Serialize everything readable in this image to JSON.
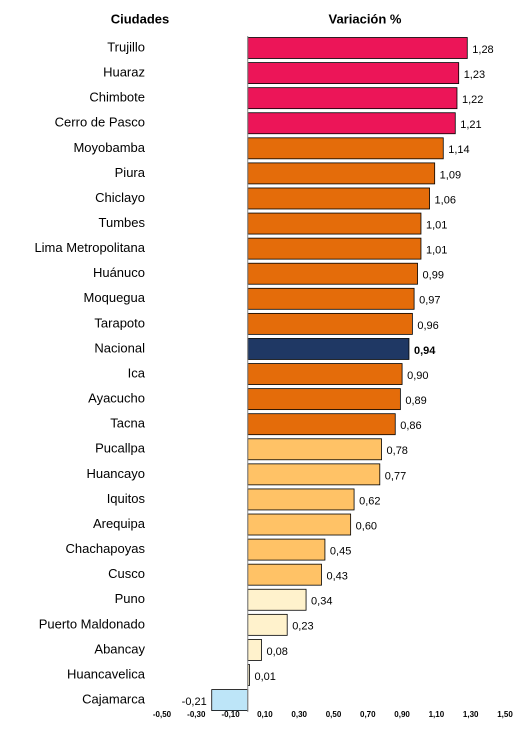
{
  "chart_data": {
    "type": "barh",
    "category_header": "Ciudades",
    "value_header": "Variación %",
    "categories": [
      "Trujillo",
      "Huaraz",
      "Chimbote",
      "Cerro de Pasco",
      "Moyobamba",
      "Piura",
      "Chiclayo",
      "Tumbes",
      "Lima Metropolitana",
      "Huánuco",
      "Moquegua",
      "Tarapoto",
      "Nacional",
      "Ica",
      "Ayacucho",
      "Tacna",
      "Pucallpa",
      "Huancayo",
      "Iquitos",
      "Arequipa",
      "Chachapoyas",
      "Cusco",
      "Puno",
      "Puerto Maldonado",
      "Abancay",
      "Huancavelica",
      "Cajamarca"
    ],
    "values": [
      1.28,
      1.23,
      1.22,
      1.21,
      1.14,
      1.09,
      1.06,
      1.01,
      1.01,
      0.99,
      0.97,
      0.96,
      0.94,
      0.9,
      0.89,
      0.86,
      0.78,
      0.77,
      0.62,
      0.6,
      0.45,
      0.43,
      0.34,
      0.23,
      0.08,
      0.01,
      -0.21
    ],
    "value_labels": [
      "1,28",
      "1,23",
      "1,22",
      "1,21",
      "1,14",
      "1,09",
      "1,06",
      "1,01",
      "1,01",
      "0,99",
      "0,97",
      "0,96",
      "0,94",
      "0,90",
      "0,89",
      "0,86",
      "0,78",
      "0,77",
      "0,62",
      "0,60",
      "0,45",
      "0,43",
      "0,34",
      "0,23",
      "0,08",
      "0,01",
      "-0,21"
    ],
    "colors": [
      "#ec1558",
      "#ec1558",
      "#ec1558",
      "#ec1558",
      "#e46c0a",
      "#e46c0a",
      "#e46c0a",
      "#e46c0a",
      "#e46c0a",
      "#e46c0a",
      "#e46c0a",
      "#e46c0a",
      "#1f3864",
      "#e46c0a",
      "#e46c0a",
      "#e46c0a",
      "#ffc266",
      "#ffc266",
      "#ffc266",
      "#ffc266",
      "#ffc266",
      "#ffc266",
      "#fff2cc",
      "#fff2cc",
      "#fff2cc",
      "#fff2cc",
      "#bde5f8"
    ],
    "highlight_category": "Nacional",
    "xlim": [
      -0.5,
      1.5
    ],
    "xticks": [
      {
        "value": -0.5,
        "label": "-0,50"
      },
      {
        "value": -0.3,
        "label": "-0,30"
      },
      {
        "value": -0.1,
        "label": "-0,10"
      },
      {
        "value": 0.1,
        "label": "0,10"
      },
      {
        "value": 0.3,
        "label": "0,30"
      },
      {
        "value": 0.5,
        "label": "0,50"
      },
      {
        "value": 0.7,
        "label": "0,70"
      },
      {
        "value": 0.9,
        "label": "0,90"
      },
      {
        "value": 1.1,
        "label": "1,10"
      },
      {
        "value": 1.3,
        "label": "1,30"
      },
      {
        "value": 1.5,
        "label": "1,50"
      }
    ],
    "grid": false
  }
}
